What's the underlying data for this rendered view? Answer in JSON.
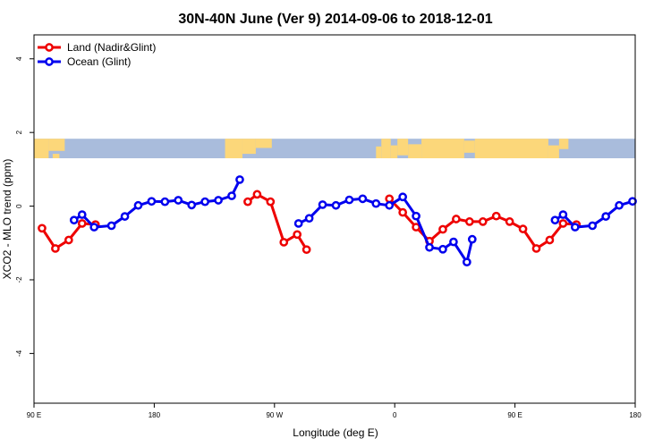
{
  "chart_data": {
    "type": "line",
    "title": "30N-40N June (Ver 9)   2014-09-06 to 2018-12-01",
    "xlabel": "Longitude (deg E)",
    "ylabel": "XCO2 - MLO trend (ppm)",
    "xlim": [
      90,
      540
    ],
    "ylim": [
      -5.35,
      4.65
    ],
    "xticks": [
      {
        "value": 90,
        "label": "90 E"
      },
      {
        "value": 180,
        "label": "180"
      },
      {
        "value": 270,
        "label": "90 W"
      },
      {
        "value": 360,
        "label": "0"
      },
      {
        "value": 450,
        "label": "90 E"
      },
      {
        "value": 540,
        "label": "180"
      }
    ],
    "yticks": [
      {
        "value": -4,
        "label": "-4"
      },
      {
        "value": -2,
        "label": "-2"
      },
      {
        "value": 0,
        "label": "0"
      },
      {
        "value": 2,
        "label": "2"
      },
      {
        "value": 4,
        "label": "4"
      }
    ],
    "grid": false,
    "legend_position": "top-left",
    "background_band": {
      "ymin": 1.3,
      "ymax": 1.83,
      "land_color": "#fcd77a",
      "ocean_color": "#a9bcdc"
    },
    "series": [
      {
        "name": "Land (Nadir&Glint)",
        "color": "#ee0000",
        "segments": [
          [
            [
              96,
              -0.6
            ],
            [
              106,
              -1.15
            ],
            [
              116,
              -0.92
            ],
            [
              126,
              -0.47
            ],
            [
              136,
              -0.5
            ]
          ],
          [
            [
              250,
              0.12
            ],
            [
              257,
              0.32
            ],
            [
              267,
              0.12
            ],
            [
              277,
              -0.98
            ],
            [
              287,
              -0.77
            ],
            [
              294,
              -1.18
            ]
          ],
          [
            [
              356,
              0.2
            ],
            [
              366,
              -0.17
            ],
            [
              376,
              -0.57
            ],
            [
              386,
              -0.95
            ],
            [
              396,
              -0.63
            ],
            [
              406,
              -0.35
            ],
            [
              416,
              -0.42
            ],
            [
              426,
              -0.42
            ],
            [
              436,
              -0.27
            ],
            [
              446,
              -0.42
            ],
            [
              456,
              -0.62
            ],
            [
              466,
              -1.15
            ],
            [
              476,
              -0.92
            ],
            [
              486,
              -0.47
            ],
            [
              496,
              -0.5
            ]
          ]
        ]
      },
      {
        "name": "Ocean (Glint)",
        "color": "#0000ee",
        "segments": [
          [
            [
              120,
              -0.38
            ],
            [
              126,
              -0.23
            ],
            [
              135,
              -0.57
            ],
            [
              148,
              -0.53
            ],
            [
              158,
              -0.28
            ],
            [
              168,
              0.02
            ],
            [
              178,
              0.13
            ],
            [
              188,
              0.12
            ],
            [
              198,
              0.16
            ],
            [
              208,
              0.03
            ],
            [
              218,
              0.12
            ],
            [
              228,
              0.16
            ],
            [
              238,
              0.28
            ],
            [
              244,
              0.72
            ]
          ],
          [
            [
              288,
              -0.47
            ],
            [
              296,
              -0.33
            ],
            [
              306,
              0.04
            ],
            [
              316,
              0.02
            ],
            [
              326,
              0.17
            ],
            [
              336,
              0.2
            ],
            [
              346,
              0.07
            ],
            [
              356,
              0.02
            ],
            [
              366,
              0.25
            ],
            [
              376,
              -0.27
            ],
            [
              386,
              -1.12
            ],
            [
              396,
              -1.17
            ],
            [
              404,
              -0.97
            ],
            [
              414,
              -1.52
            ],
            [
              418,
              -0.9
            ]
          ],
          [
            [
              480,
              -0.38
            ],
            [
              486,
              -0.23
            ],
            [
              495,
              -0.57
            ],
            [
              508,
              -0.53
            ],
            [
              518,
              -0.28
            ],
            [
              528,
              0.02
            ],
            [
              538,
              0.13
            ]
          ]
        ]
      }
    ]
  }
}
